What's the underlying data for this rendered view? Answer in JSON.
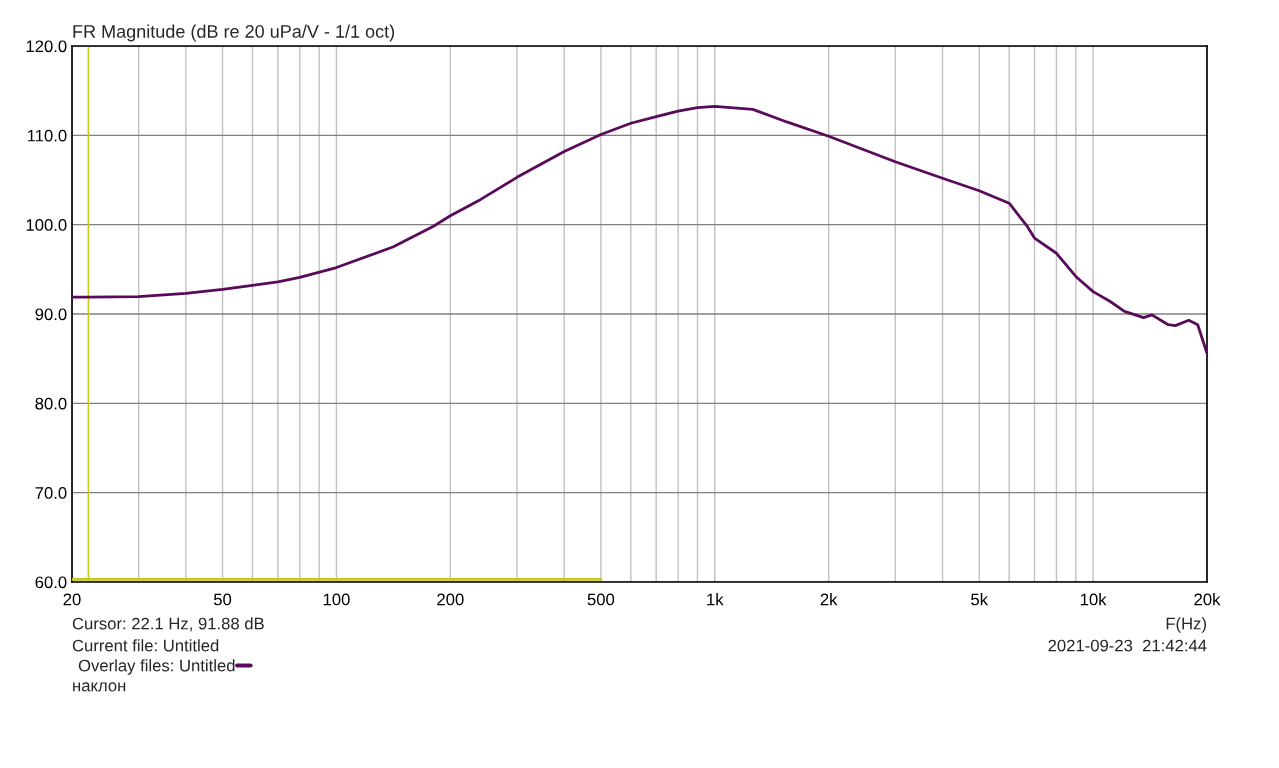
{
  "chart_data": {
    "type": "line",
    "title": "FR Magnitude (dB re 20 uPa/V - 1/1 oct)",
    "xlabel": "F(Hz)",
    "log": "x",
    "grid": true,
    "legend": "bottom left",
    "xlim": [
      20,
      20000
    ],
    "ylim": [
      60,
      120
    ],
    "xticks": [
      20,
      {
        "value": 30,
        "label": null
      },
      {
        "value": 40,
        "label": null
      },
      50,
      {
        "value": 60,
        "label": null
      },
      {
        "value": 70,
        "label": null
      },
      {
        "value": 80,
        "label": null
      },
      {
        "value": 90,
        "label": null
      },
      100,
      200,
      {
        "value": 300,
        "label": null
      },
      {
        "value": 400,
        "label": null
      },
      500,
      {
        "value": 600,
        "label": null
      },
      {
        "value": 700,
        "label": null
      },
      {
        "value": 800,
        "label": null
      },
      {
        "value": 900,
        "label": null
      },
      {
        "value": 1000,
        "label": "1k"
      },
      {
        "value": 2000,
        "label": "2k"
      },
      {
        "value": 3000,
        "label": null
      },
      {
        "value": 4000,
        "label": null
      },
      {
        "value": 5000,
        "label": "5k"
      },
      {
        "value": 6000,
        "label": null
      },
      {
        "value": 7000,
        "label": null
      },
      {
        "value": 8000,
        "label": null
      },
      {
        "value": 9000,
        "label": null
      },
      {
        "value": 10000,
        "label": "10k"
      },
      {
        "value": 20000,
        "label": "20k"
      }
    ],
    "yticks": [
      {
        "value": 60,
        "label": "60.0"
      },
      {
        "value": 70,
        "label": "70.0"
      },
      {
        "value": 80,
        "label": "80.0"
      },
      {
        "value": 90,
        "label": "90.0"
      },
      {
        "value": 100,
        "label": "100.0"
      },
      {
        "value": 110,
        "label": "110.0"
      },
      {
        "value": 120,
        "label": "120.0"
      }
    ],
    "series": [
      {
        "name": "Overlay files: Untitled",
        "color": "#5a0a5a",
        "x": [
          20,
          22.1,
          30,
          40,
          50,
          60,
          70,
          80,
          100,
          141,
          180,
          200,
          240,
          300,
          400,
          500,
          600,
          700,
          800,
          900,
          1000,
          1260,
          1550,
          2000,
          3000,
          4000,
          5000,
          6000,
          6700,
          7000,
          8000,
          9000,
          10000,
          11100,
          12100,
          13600,
          14300,
          15800,
          16500,
          17900,
          18900,
          20000
        ],
        "values": [
          91.9,
          91.88,
          91.95,
          92.3,
          92.75,
          93.2,
          93.6,
          94.1,
          95.2,
          97.5,
          99.8,
          101.0,
          102.8,
          105.3,
          108.2,
          110.1,
          111.35,
          112.1,
          112.7,
          113.1,
          113.25,
          112.9,
          111.5,
          109.9,
          107.05,
          105.2,
          103.8,
          102.4,
          99.8,
          98.5,
          96.8,
          94.2,
          92.5,
          91.4,
          90.3,
          89.6,
          89.9,
          88.8,
          88.7,
          89.3,
          88.8,
          85.6
        ]
      },
      {
        "color": "#c8c81e",
        "x": [
          20,
          500
        ],
        "values": [
          60.3,
          60.3
        ]
      }
    ],
    "ref_lines": [
      {
        "axis": "x",
        "value": 22.1,
        "color": "#c8c81e"
      }
    ],
    "annotations": [
      "Cursor: 22.1 Hz, 91.88 dB",
      "Current file: Untitled",
      "наклон",
      "2021-09-23  21:42:44"
    ]
  }
}
